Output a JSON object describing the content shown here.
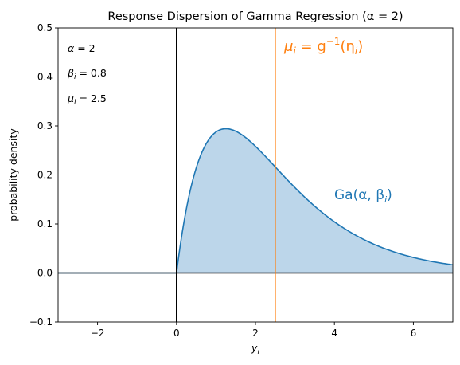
{
  "chart_data": {
    "type": "area",
    "title": "Response Dispersion of Gamma Regression (α = 2)",
    "xlabel": "y",
    "xlabel_sub": "i",
    "ylabel": "probability density",
    "xlim": [
      -3,
      7
    ],
    "ylim": [
      -0.1,
      0.5
    ],
    "x_ticks": [
      -2,
      0,
      2,
      4,
      6
    ],
    "x_tick_labels": [
      "−2",
      "0",
      "2",
      "4",
      "6"
    ],
    "y_ticks": [
      -0.1,
      0.0,
      0.1,
      0.2,
      0.3,
      0.4,
      0.5
    ],
    "y_tick_labels": [
      "−0.1",
      "0.0",
      "0.1",
      "0.2",
      "0.3",
      "0.4",
      "0.5"
    ],
    "grid": false,
    "distribution": {
      "family": "gamma",
      "shape": 2,
      "rate": 0.8
    },
    "series": [
      {
        "color": "#1f77b4",
        "fill_color": "#bcd6ea",
        "x": [
          -3,
          0,
          0.25,
          0.5,
          0.75,
          1.0,
          1.25,
          1.5,
          2.0,
          2.5,
          3.0,
          3.5,
          4.0,
          4.5,
          5.0,
          5.5,
          6.0,
          6.5,
          7.0
        ],
        "values": [
          0,
          0,
          0.131,
          0.215,
          0.264,
          0.288,
          0.294,
          0.289,
          0.258,
          0.217,
          0.174,
          0.137,
          0.104,
          0.078,
          0.059,
          0.043,
          0.032,
          0.023,
          0.017
        ]
      }
    ],
    "vertical_lines": [
      {
        "x": 0,
        "color": "#000000"
      },
      {
        "x": 2.5,
        "color": "#ff7f0e"
      }
    ],
    "horizontal_lines": [
      {
        "y": 0,
        "color": "#000000"
      }
    ],
    "annotations": {
      "alpha": {
        "sym": "α",
        "eq": " = 2"
      },
      "beta": {
        "sym": "β",
        "sub": "i",
        "eq": " = 0.8"
      },
      "mu": {
        "sym": "μ",
        "sub": "i",
        "eq": " = 2.5"
      },
      "mean_label": {
        "mu": "μ",
        "mu_sub": "i",
        "eq": " = g",
        "sup": "−1",
        "open": "(η",
        "eta_sub": "i",
        "close": ")",
        "color": "#ff7f0e"
      },
      "dist_label": {
        "text": "Ga(α, β",
        "sub": "i",
        "close": ")",
        "color": "#1f77b4"
      }
    }
  }
}
